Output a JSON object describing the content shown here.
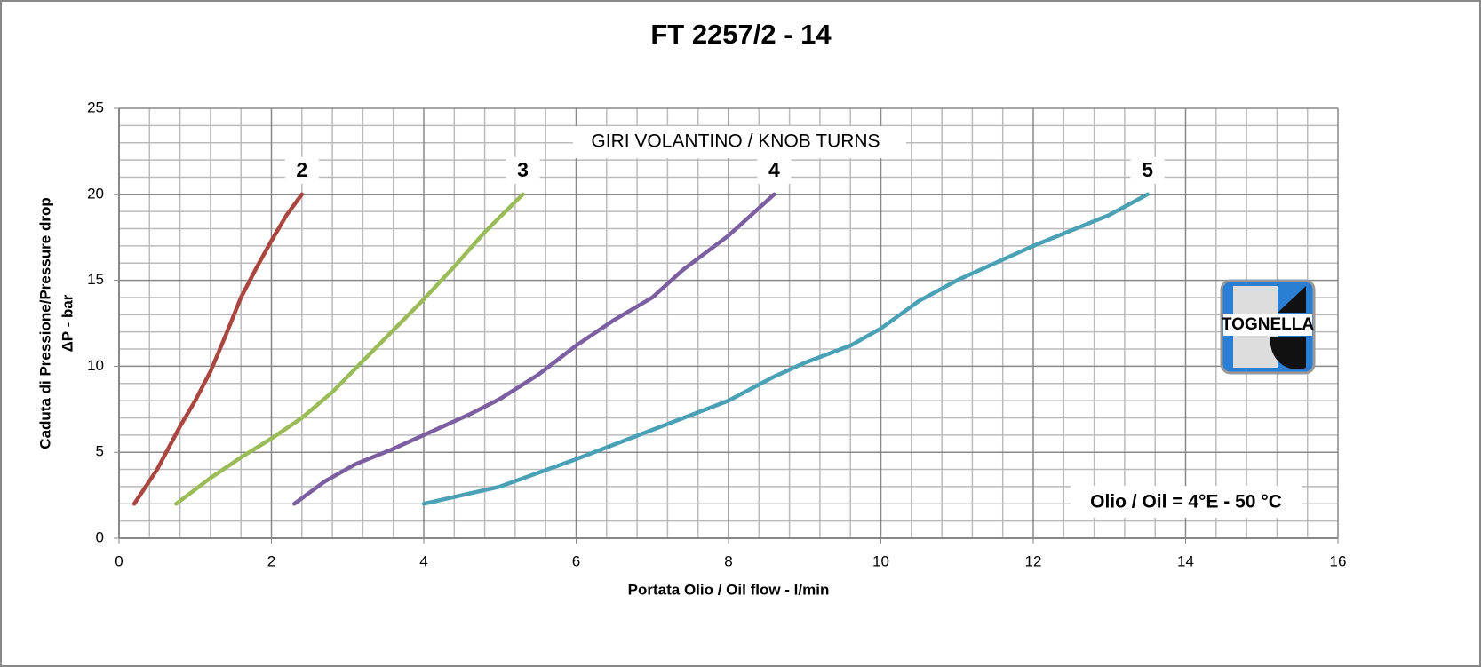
{
  "chart_data": {
    "type": "line",
    "title": "FT 2257/2 - 14",
    "xlabel": "Portata Olio / Oil flow  - l/min",
    "ylabel": [
      "Caduta di Pressione/Pressure drop",
      "ΔP - bar"
    ],
    "annotations": [
      "GIRI VOLANTINO / KNOB TURNS",
      "Olio / Oil = 4°E - 50 °C"
    ],
    "logo_text": "TOGNELLA",
    "xlim": [
      0,
      16
    ],
    "xticks": [
      0,
      2,
      4,
      6,
      8,
      10,
      12,
      14,
      16
    ],
    "ylim": [
      0,
      25
    ],
    "yticks": [
      0,
      5,
      10,
      15,
      20,
      25
    ],
    "grid": true,
    "series": [
      {
        "name": "2",
        "color": "#a9463f",
        "x": [
          0.2,
          0.5,
          0.8,
          1,
          1.2,
          1.4,
          1.6,
          1.8,
          2,
          2.2,
          2.4
        ],
        "values": [
          2,
          4,
          6.5,
          8,
          9.7,
          11.8,
          14,
          15.7,
          17.3,
          18.8,
          20
        ]
      },
      {
        "name": "3",
        "color": "#9bbb59",
        "x": [
          0.75,
          1.2,
          1.6,
          2,
          2.4,
          2.8,
          3.2,
          3.6,
          4,
          4.4,
          4.8,
          5.3
        ],
        "values": [
          2,
          3.5,
          4.7,
          5.8,
          7,
          8.5,
          10.3,
          12.1,
          13.9,
          15.8,
          17.8,
          20
        ]
      },
      {
        "name": "4",
        "color": "#7b5fa0",
        "x": [
          2.3,
          2.7,
          3.1,
          3.6,
          4,
          4.6,
          5,
          5.5,
          6,
          6.5,
          7,
          7.4,
          8,
          8.6
        ],
        "values": [
          2,
          3.3,
          4.3,
          5.2,
          6,
          7.2,
          8.1,
          9.5,
          11.2,
          12.7,
          14,
          15.6,
          17.6,
          20
        ]
      },
      {
        "name": "5",
        "color": "#4aa0b5",
        "x": [
          4,
          5,
          6,
          7,
          8,
          8.6,
          9,
          9.6,
          10,
          10.5,
          11,
          12,
          13,
          13.5
        ],
        "values": [
          2,
          3,
          4.6,
          6.3,
          8,
          9.4,
          10.2,
          11.2,
          12.2,
          13.8,
          15,
          17,
          18.8,
          20
        ]
      }
    ]
  }
}
